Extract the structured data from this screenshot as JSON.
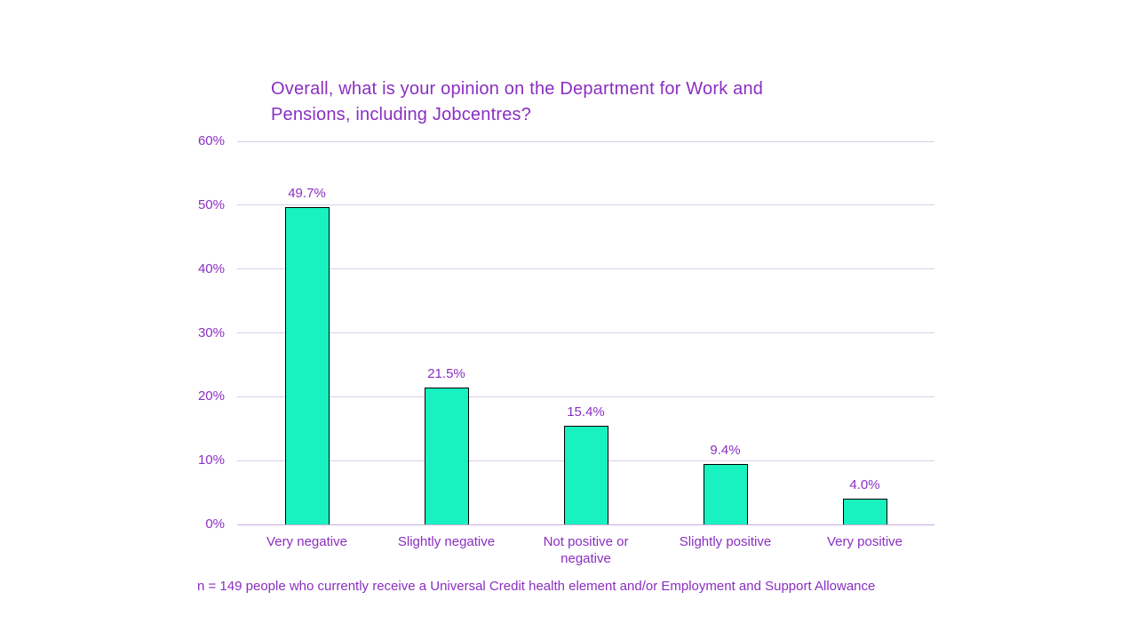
{
  "page": {
    "background": "#ffffff"
  },
  "chart_data": {
    "type": "bar",
    "title": {
      "text": "Overall, what is your opinion on the Department for Work and Pensions, including Jobcentres?",
      "lines": [
        "Overall, what is your opinion on the Department for Work and",
        "Pensions, including Jobcentres?"
      ]
    },
    "categories": [
      "Very negative",
      "Slightly negative",
      "Not positive or negative",
      "Slightly positive",
      "Very positive"
    ],
    "values": [
      49.7,
      21.5,
      15.4,
      9.4,
      4.0
    ],
    "value_labels": [
      "49.7%",
      "21.5%",
      "15.4%",
      "9.4%",
      "4.0%"
    ],
    "xlabel": "",
    "ylabel": "",
    "ylim": [
      0,
      60
    ],
    "ytick_step": 10,
    "ytick_suffix": "%",
    "yticks": [
      "0%",
      "10%",
      "20%",
      "30%",
      "40%",
      "50%",
      "60%"
    ],
    "grid": true,
    "legend_position": "none",
    "footnote": "n = 149 people who currently receive a Universal Credit health element and/or Employment and Support Allowance",
    "colors": {
      "bar_fill": "#18f2c0",
      "bar_border": "#000000",
      "text": "#8a2fc1",
      "gridline": "#dcccec",
      "axis_line": "#c7addd",
      "background": "#ffffff"
    }
  }
}
